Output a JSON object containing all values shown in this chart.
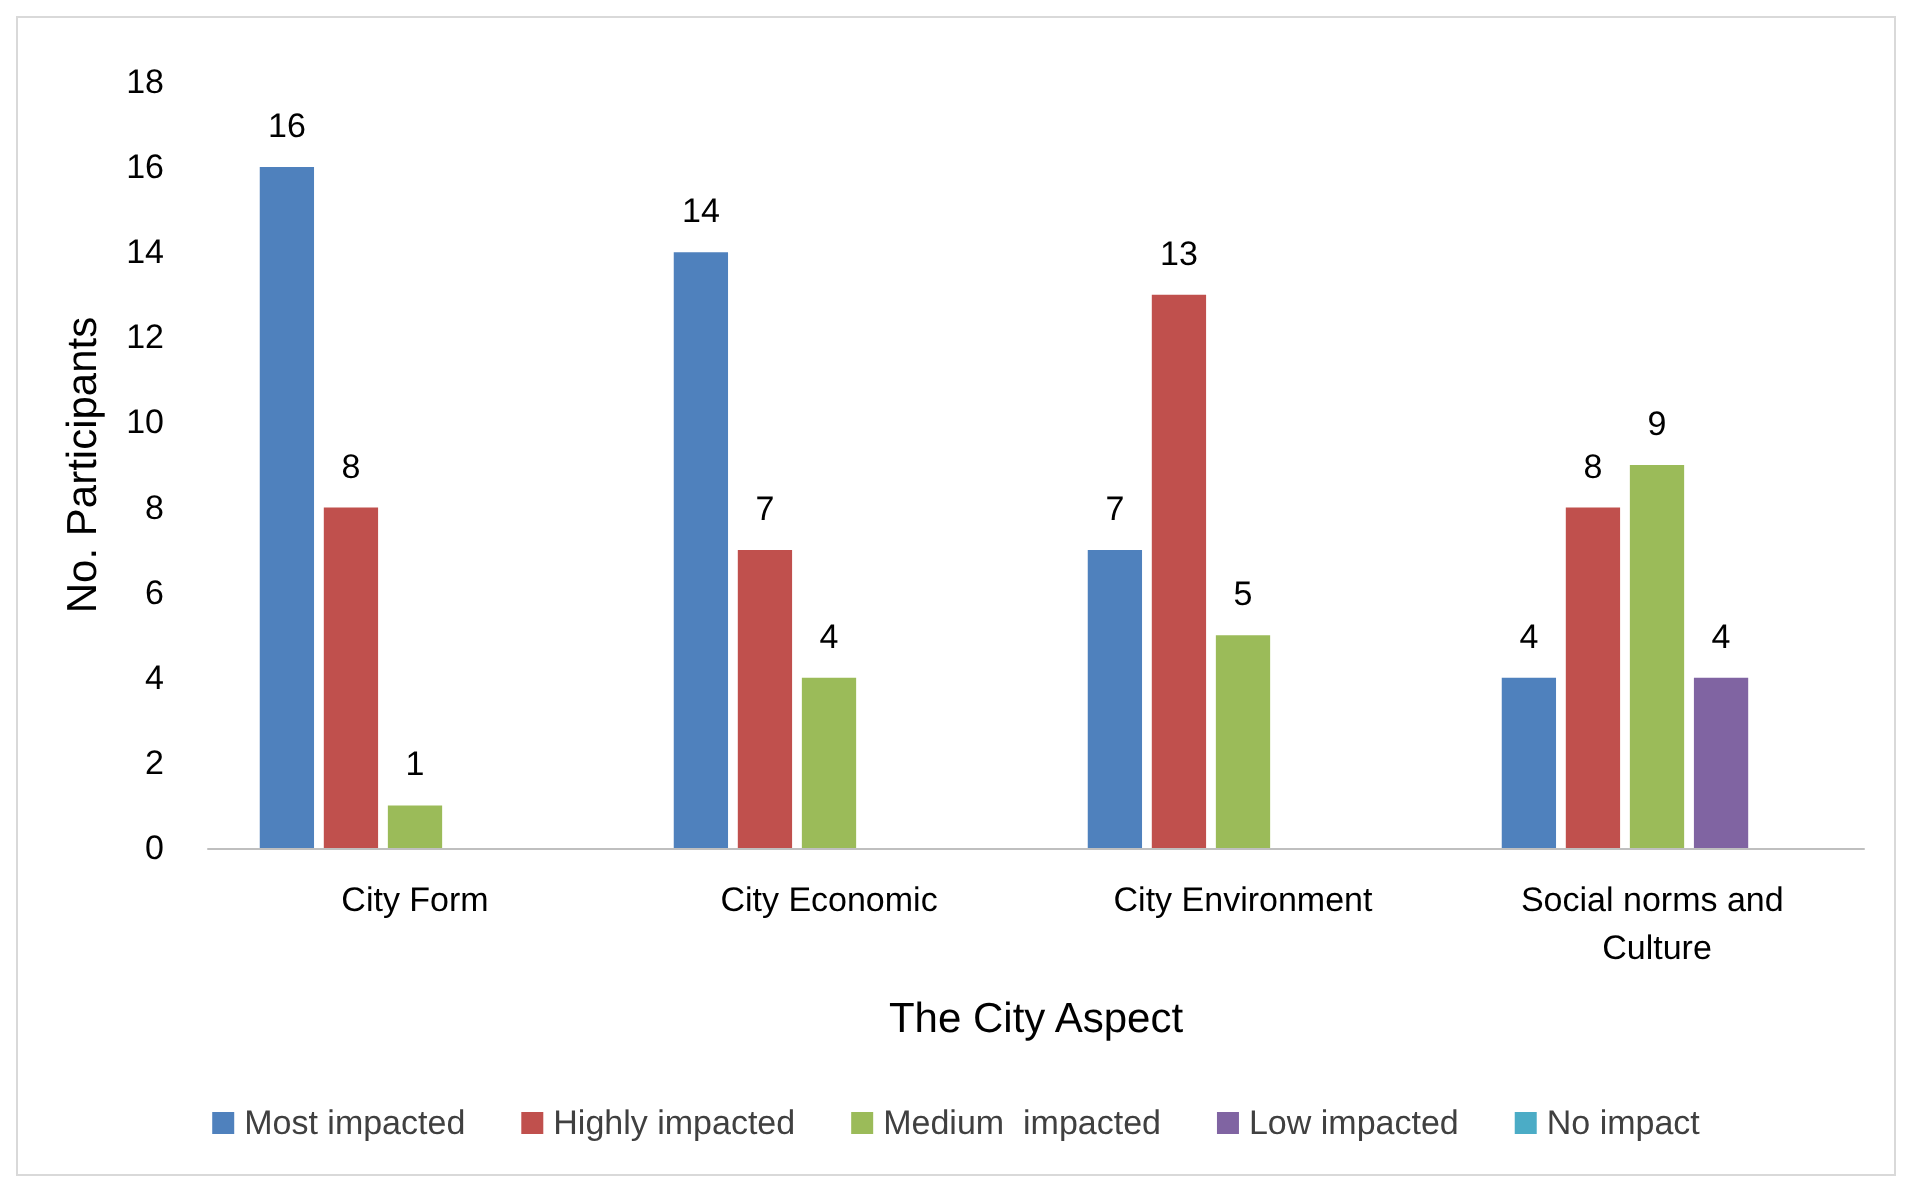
{
  "chart_data": {
    "type": "bar",
    "xlabel": "The City Aspect",
    "ylabel": "No. Participants",
    "categories": [
      "City Form",
      "City Economic",
      "City Environment",
      "Social norms and Culture"
    ],
    "series": [
      {
        "name": "Most impacted",
        "color": "#4f81bd",
        "values": [
          16,
          14,
          7,
          4
        ]
      },
      {
        "name": "Highly impacted",
        "color": "#c0504d",
        "values": [
          8,
          7,
          13,
          8
        ]
      },
      {
        "name": "Medium  impacted",
        "color": "#9bbb59",
        "values": [
          1,
          4,
          5,
          9
        ]
      },
      {
        "name": "Low impacted",
        "color": "#8064a2",
        "values": [
          null,
          null,
          null,
          4
        ]
      },
      {
        "name": "No impact",
        "color": "#4bacc6",
        "values": [
          null,
          null,
          null,
          null
        ]
      }
    ],
    "ylim": [
      0,
      18
    ],
    "yticks": [
      0,
      2,
      4,
      6,
      8,
      10,
      12,
      14,
      16,
      18
    ],
    "grid": false,
    "legend": "bottom",
    "data_labels": true
  }
}
